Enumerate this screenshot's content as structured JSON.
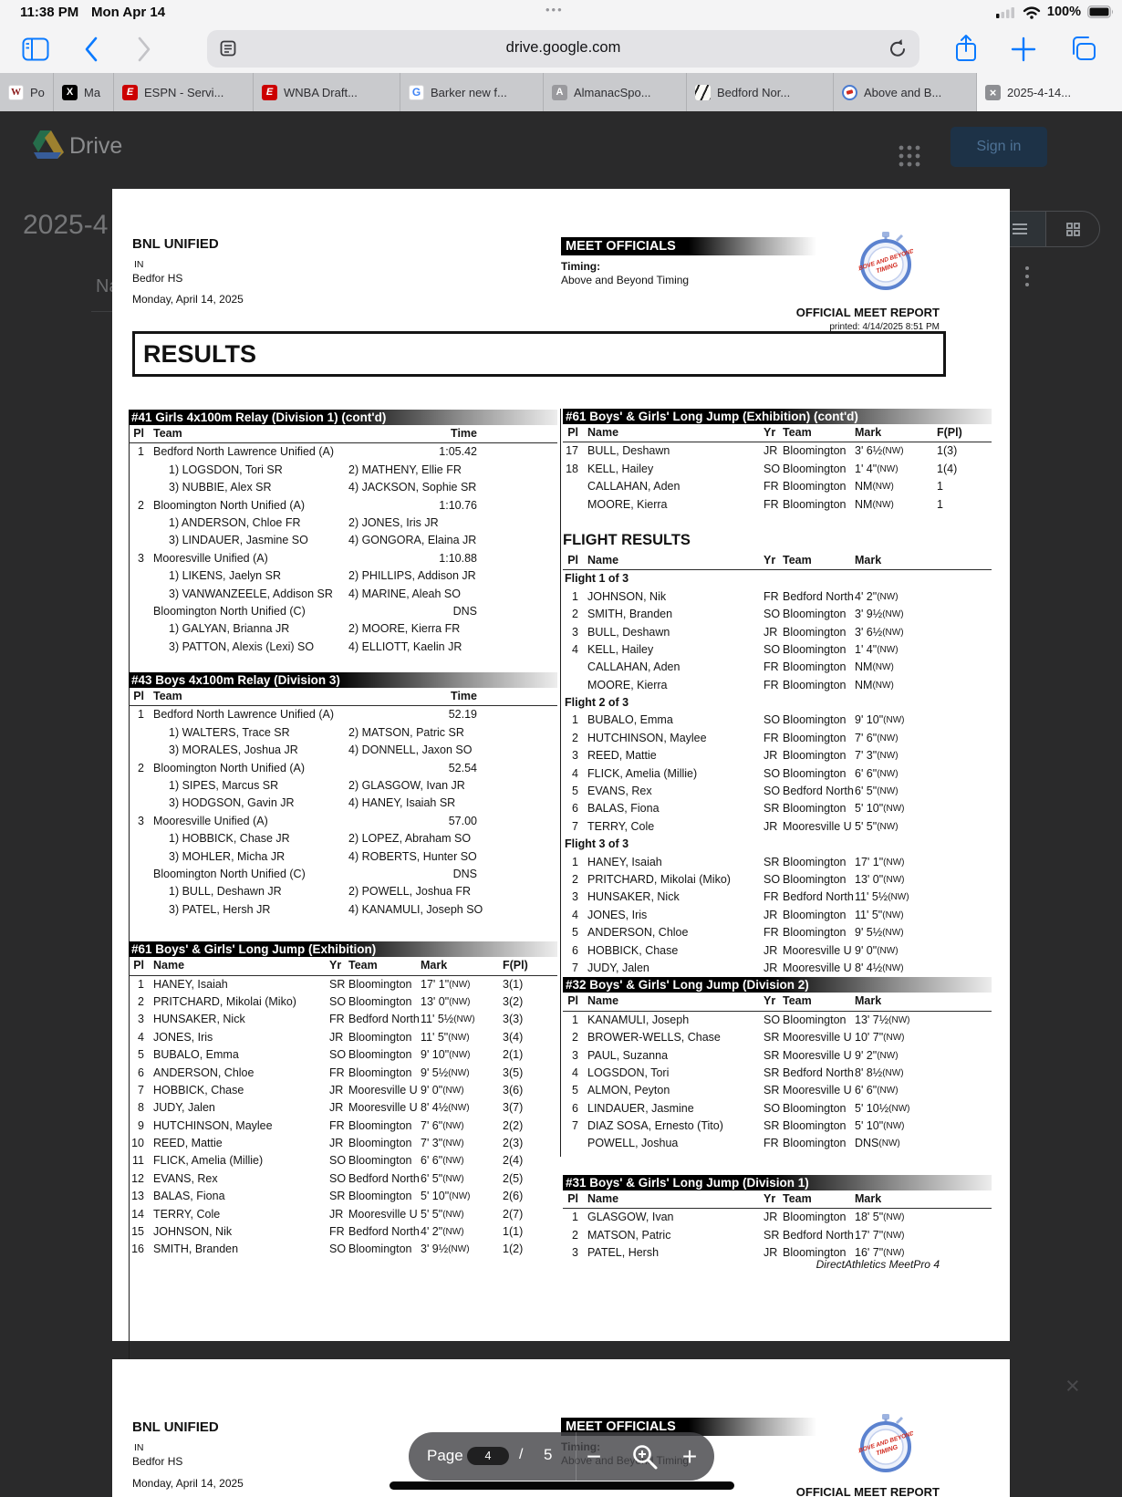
{
  "status_bar": {
    "time": "11:38 PM",
    "date": "Mon Apr 14",
    "battery_pct": "100%",
    "multitask_dots": "•••"
  },
  "browser": {
    "url": "drive.google.com"
  },
  "tabs": [
    {
      "label": "Po",
      "icon": "wapo-favicon"
    },
    {
      "label": "Ma",
      "icon": "x-favicon"
    },
    {
      "label": "ESPN - Servi...",
      "icon": "espn-favicon"
    },
    {
      "label": "WNBA Draft...",
      "icon": "espn-favicon"
    },
    {
      "label": "Barker new f...",
      "icon": "google-favicon"
    },
    {
      "label": "AlmanacSpo...",
      "icon": "almanac-favicon"
    },
    {
      "label": "Bedford Nor...",
      "icon": "bedford-favicon"
    },
    {
      "label": "Above and B...",
      "icon": "timing-favicon"
    },
    {
      "label": "2025-4-14...",
      "icon": "close-icon",
      "active": true
    }
  ],
  "drive": {
    "brand": "Drive",
    "sign_in": "Sign in",
    "doc_title": "2025-4",
    "partial_label": "Na"
  },
  "pager": {
    "label": "Page",
    "current": "4",
    "separator": "/",
    "total": "5"
  },
  "report": {
    "school": "BNL UNIFIED",
    "state": "IN",
    "venue": "Bedfor HS",
    "date": "Monday, April 14, 2025",
    "officials_title": "MEET OFFICIALS",
    "timing_label": "Timing:",
    "timing_company": "Above and Beyond Timing",
    "report_title": "OFFICIAL MEET REPORT",
    "printed": "printed: 4/14/2025 8:51 PM",
    "results_heading": "RESULTS",
    "footer": "DirectAthletics MeetPro 4"
  },
  "relay_columns": {
    "pl": "Pl",
    "team": "Team",
    "time": "Time"
  },
  "jump_columns": {
    "pl": "Pl",
    "name": "Name",
    "yr": "Yr",
    "team": "Team",
    "mark": "Mark",
    "fpl": "F(Pl)"
  },
  "sections": {
    "relay41": {
      "title": "#41 Girls 4x100m Relay (Division 1) (cont'd)",
      "teams": [
        {
          "pl": "1",
          "team": "Bedford North Lawrence Unified (A)",
          "time": "1:05.42",
          "legs": [
            "1) LOGSDON, Tori SR",
            "2) MATHENY, Ellie FR",
            "3) NUBBIE, Alex SR",
            "4) JACKSON, Sophie SR"
          ]
        },
        {
          "pl": "2",
          "team": "Bloomington North Unified (A)",
          "time": "1:10.76",
          "legs": [
            "1) ANDERSON, Chloe FR",
            "2) JONES, Iris JR",
            "3) LINDAUER, Jasmine SO",
            "4) GONGORA, Elaina JR"
          ]
        },
        {
          "pl": "3",
          "team": "Mooresville Unified (A)",
          "time": "1:10.88",
          "legs": [
            "1) LIKENS, Jaelyn SR",
            "2) PHILLIPS, Addison JR",
            "3) VANWANZEELE, Addison SR",
            "4) MARINE, Aleah SO"
          ]
        },
        {
          "pl": "",
          "team": "Bloomington North Unified (C)",
          "time": "DNS",
          "legs": [
            "1) GALYAN, Brianna JR",
            "2) MOORE, Kierra FR",
            "3) PATTON, Alexis (Lexi) SO",
            "4) ELLIOTT, Kaelin JR"
          ]
        }
      ]
    },
    "relay43": {
      "title": "#43 Boys 4x100m Relay (Division 3)",
      "teams": [
        {
          "pl": "1",
          "team": "Bedford North Lawrence Unified (A)",
          "time": "52.19",
          "legs": [
            "1) WALTERS, Trace SR",
            "2) MATSON, Patric SR",
            "3) MORALES, Joshua JR",
            "4) DONNELL, Jaxon SO"
          ]
        },
        {
          "pl": "2",
          "team": "Bloomington North Unified (A)",
          "time": "52.54",
          "legs": [
            "1) SIPES, Marcus SR",
            "2) GLASGOW, Ivan JR",
            "3) HODGSON, Gavin JR",
            "4) HANEY, Isaiah SR"
          ]
        },
        {
          "pl": "3",
          "team": "Mooresville Unified (A)",
          "time": "57.00",
          "legs": [
            "1) HOBBICK, Chase JR",
            "2) LOPEZ, Abraham SO",
            "3) MOHLER, Micha JR",
            "4) ROBERTS, Hunter SO"
          ]
        },
        {
          "pl": "",
          "team": "Bloomington North Unified (C)",
          "time": "DNS",
          "legs": [
            "1) BULL, Deshawn JR",
            "2) POWELL, Joshua FR",
            "3) PATEL, Hersh JR",
            "4) KANAMULI, Joseph SO"
          ]
        }
      ]
    },
    "jump61": {
      "title": "#61 Boys' & Girls' Long Jump (Exhibition)",
      "rows": [
        {
          "pl": "1",
          "name": "HANEY, Isaiah",
          "yr": "SR",
          "team": "Bloomington",
          "mark": "17' 1\"",
          "wind": "(NW)",
          "fpl": "3(1)"
        },
        {
          "pl": "2",
          "name": "PRITCHARD, Mikolai (Miko)",
          "yr": "SO",
          "team": "Bloomington",
          "mark": "13' 0\"",
          "wind": "(NW)",
          "fpl": "3(2)"
        },
        {
          "pl": "3",
          "name": "HUNSAKER, Nick",
          "yr": "FR",
          "team": "Bedford North",
          "mark": "11' 5½",
          "wind": "(NW)",
          "fpl": "3(3)"
        },
        {
          "pl": "4",
          "name": "JONES, Iris",
          "yr": "JR",
          "team": "Bloomington",
          "mark": "11' 5\"",
          "wind": "(NW)",
          "fpl": "3(4)"
        },
        {
          "pl": "5",
          "name": "BUBALO, Emma",
          "yr": "SO",
          "team": "Bloomington",
          "mark": "9' 10\"",
          "wind": "(NW)",
          "fpl": "2(1)"
        },
        {
          "pl": "6",
          "name": "ANDERSON, Chloe",
          "yr": "FR",
          "team": "Bloomington",
          "mark": "9' 5½",
          "wind": "(NW)",
          "fpl": "3(5)"
        },
        {
          "pl": "7",
          "name": "HOBBICK, Chase",
          "yr": "JR",
          "team": "Mooresville U",
          "mark": "9' 0\"",
          "wind": "(NW)",
          "fpl": "3(6)"
        },
        {
          "pl": "8",
          "name": "JUDY, Jalen",
          "yr": "JR",
          "team": "Mooresville U",
          "mark": "8' 4½",
          "wind": "(NW)",
          "fpl": "3(7)"
        },
        {
          "pl": "9",
          "name": "HUTCHINSON, Maylee",
          "yr": "FR",
          "team": "Bloomington",
          "mark": "7' 6\"",
          "wind": "(NW)",
          "fpl": "2(2)"
        },
        {
          "pl": "10",
          "name": "REED, Mattie",
          "yr": "JR",
          "team": "Bloomington",
          "mark": "7' 3\"",
          "wind": "(NW)",
          "fpl": "2(3)"
        },
        {
          "pl": "11",
          "name": "FLICK, Amelia (Millie)",
          "yr": "SO",
          "team": "Bloomington",
          "mark": "6' 6\"",
          "wind": "(NW)",
          "fpl": "2(4)"
        },
        {
          "pl": "12",
          "name": "EVANS, Rex",
          "yr": "SO",
          "team": "Bedford North",
          "mark": "6' 5\"",
          "wind": "(NW)",
          "fpl": "2(5)"
        },
        {
          "pl": "13",
          "name": "BALAS, Fiona",
          "yr": "SR",
          "team": "Bloomington",
          "mark": "5' 10\"",
          "wind": "(NW)",
          "fpl": "2(6)"
        },
        {
          "pl": "14",
          "name": "TERRY, Cole",
          "yr": "JR",
          "team": "Mooresville U",
          "mark": "5' 5\"",
          "wind": "(NW)",
          "fpl": "2(7)"
        },
        {
          "pl": "15",
          "name": "JOHNSON, Nik",
          "yr": "FR",
          "team": "Bedford North",
          "mark": "4' 2\"",
          "wind": "(NW)",
          "fpl": "1(1)"
        },
        {
          "pl": "16",
          "name": "SMITH, Branden",
          "yr": "SO",
          "team": "Bloomington",
          "mark": "3' 9½",
          "wind": "(NW)",
          "fpl": "1(2)"
        }
      ]
    },
    "jump61cont": {
      "title": "#61 Boys' & Girls' Long Jump (Exhibition) (cont'd)",
      "rows": [
        {
          "pl": "17",
          "name": "BULL, Deshawn",
          "yr": "JR",
          "team": "Bloomington",
          "mark": "3' 6½",
          "wind": "(NW)",
          "fpl": "1(3)"
        },
        {
          "pl": "18",
          "name": "KELL, Hailey",
          "yr": "SO",
          "team": "Bloomington",
          "mark": "1' 4\"",
          "wind": "(NW)",
          "fpl": "1(4)"
        },
        {
          "pl": "",
          "name": "CALLAHAN, Aden",
          "yr": "FR",
          "team": "Bloomington",
          "mark": "NM",
          "wind": "(NW)",
          "fpl": "1"
        },
        {
          "pl": "",
          "name": "MOORE, Kierra",
          "yr": "FR",
          "team": "Bloomington",
          "mark": "NM",
          "wind": "(NW)",
          "fpl": "1"
        }
      ]
    },
    "flights": {
      "title": "FLIGHT RESULTS",
      "groups": [
        {
          "label": "Flight 1 of 3",
          "rows": [
            {
              "pl": "1",
              "name": "JOHNSON, Nik",
              "yr": "FR",
              "team": "Bedford North",
              "mark": "4' 2\"",
              "wind": "(NW)"
            },
            {
              "pl": "2",
              "name": "SMITH, Branden",
              "yr": "SO",
              "team": "Bloomington",
              "mark": "3' 9½",
              "wind": "(NW)"
            },
            {
              "pl": "3",
              "name": "BULL, Deshawn",
              "yr": "JR",
              "team": "Bloomington",
              "mark": "3' 6½",
              "wind": "(NW)"
            },
            {
              "pl": "4",
              "name": "KELL, Hailey",
              "yr": "SO",
              "team": "Bloomington",
              "mark": "1' 4\"",
              "wind": "(NW)"
            },
            {
              "pl": "",
              "name": "CALLAHAN, Aden",
              "yr": "FR",
              "team": "Bloomington",
              "mark": "NM",
              "wind": "(NW)"
            },
            {
              "pl": "",
              "name": "MOORE, Kierra",
              "yr": "FR",
              "team": "Bloomington",
              "mark": "NM",
              "wind": "(NW)"
            }
          ]
        },
        {
          "label": "Flight 2 of 3",
          "rows": [
            {
              "pl": "1",
              "name": "BUBALO, Emma",
              "yr": "SO",
              "team": "Bloomington",
              "mark": "9' 10\"",
              "wind": "(NW)"
            },
            {
              "pl": "2",
              "name": "HUTCHINSON, Maylee",
              "yr": "FR",
              "team": "Bloomington",
              "mark": "7' 6\"",
              "wind": "(NW)"
            },
            {
              "pl": "3",
              "name": "REED, Mattie",
              "yr": "JR",
              "team": "Bloomington",
              "mark": "7' 3\"",
              "wind": "(NW)"
            },
            {
              "pl": "4",
              "name": "FLICK, Amelia (Millie)",
              "yr": "SO",
              "team": "Bloomington",
              "mark": "6' 6\"",
              "wind": "(NW)"
            },
            {
              "pl": "5",
              "name": "EVANS, Rex",
              "yr": "SO",
              "team": "Bedford North",
              "mark": "6' 5\"",
              "wind": "(NW)"
            },
            {
              "pl": "6",
              "name": "BALAS, Fiona",
              "yr": "SR",
              "team": "Bloomington",
              "mark": "5' 10\"",
              "wind": "(NW)"
            },
            {
              "pl": "7",
              "name": "TERRY, Cole",
              "yr": "JR",
              "team": "Mooresville U",
              "mark": "5' 5\"",
              "wind": "(NW)"
            }
          ]
        },
        {
          "label": "Flight 3 of 3",
          "rows": [
            {
              "pl": "1",
              "name": "HANEY, Isaiah",
              "yr": "SR",
              "team": "Bloomington",
              "mark": "17' 1\"",
              "wind": "(NW)"
            },
            {
              "pl": "2",
              "name": "PRITCHARD, Mikolai (Miko)",
              "yr": "SO",
              "team": "Bloomington",
              "mark": "13' 0\"",
              "wind": "(NW)"
            },
            {
              "pl": "3",
              "name": "HUNSAKER, Nick",
              "yr": "FR",
              "team": "Bedford North",
              "mark": "11' 5½",
              "wind": "(NW)"
            },
            {
              "pl": "4",
              "name": "JONES, Iris",
              "yr": "JR",
              "team": "Bloomington",
              "mark": "11' 5\"",
              "wind": "(NW)"
            },
            {
              "pl": "5",
              "name": "ANDERSON, Chloe",
              "yr": "FR",
              "team": "Bloomington",
              "mark": "9' 5½",
              "wind": "(NW)"
            },
            {
              "pl": "6",
              "name": "HOBBICK, Chase",
              "yr": "JR",
              "team": "Mooresville U",
              "mark": "9' 0\"",
              "wind": "(NW)"
            },
            {
              "pl": "7",
              "name": "JUDY, Jalen",
              "yr": "JR",
              "team": "Mooresville U",
              "mark": "8' 4½",
              "wind": "(NW)"
            }
          ]
        }
      ]
    },
    "jump32": {
      "title": "#32 Boys' & Girls' Long Jump (Division 2)",
      "rows": [
        {
          "pl": "1",
          "name": "KANAMULI, Joseph",
          "yr": "SO",
          "team": "Bloomington",
          "mark": "13' 7½",
          "wind": "(NW)"
        },
        {
          "pl": "2",
          "name": "BROWER-WELLS, Chase",
          "yr": "SR",
          "team": "Mooresville U",
          "mark": "10' 7\"",
          "wind": "(NW)"
        },
        {
          "pl": "3",
          "name": "PAUL, Suzanna",
          "yr": "SR",
          "team": "Mooresville U",
          "mark": "9' 2\"",
          "wind": "(NW)"
        },
        {
          "pl": "4",
          "name": "LOGSDON, Tori",
          "yr": "SR",
          "team": "Bedford North",
          "mark": "8' 8½",
          "wind": "(NW)"
        },
        {
          "pl": "5",
          "name": "ALMON, Peyton",
          "yr": "SR",
          "team": "Mooresville U",
          "mark": "6' 6\"",
          "wind": "(NW)"
        },
        {
          "pl": "6",
          "name": "LINDAUER, Jasmine",
          "yr": "SO",
          "team": "Bloomington",
          "mark": "5' 10½",
          "wind": "(NW)"
        },
        {
          "pl": "7",
          "name": "DIAZ SOSA, Ernesto (Tito)",
          "yr": "SR",
          "team": "Bloomington",
          "mark": "5' 10\"",
          "wind": "(NW)"
        },
        {
          "pl": "",
          "name": "POWELL, Joshua",
          "yr": "FR",
          "team": "Bloomington",
          "mark": "DNS",
          "wind": "(NW)"
        }
      ]
    },
    "jump31": {
      "title": "#31 Boys' & Girls' Long Jump (Division 1)",
      "rows": [
        {
          "pl": "1",
          "name": "GLASGOW, Ivan",
          "yr": "JR",
          "team": "Bloomington",
          "mark": "18' 5\"",
          "wind": "(NW)"
        },
        {
          "pl": "2",
          "name": "MATSON, Patric",
          "yr": "SR",
          "team": "Bedford North",
          "mark": "17' 7\"",
          "wind": "(NW)"
        },
        {
          "pl": "3",
          "name": "PATEL, Hersh",
          "yr": "JR",
          "team": "Bloomington",
          "mark": "16' 7\"",
          "wind": "(NW)"
        }
      ]
    }
  }
}
